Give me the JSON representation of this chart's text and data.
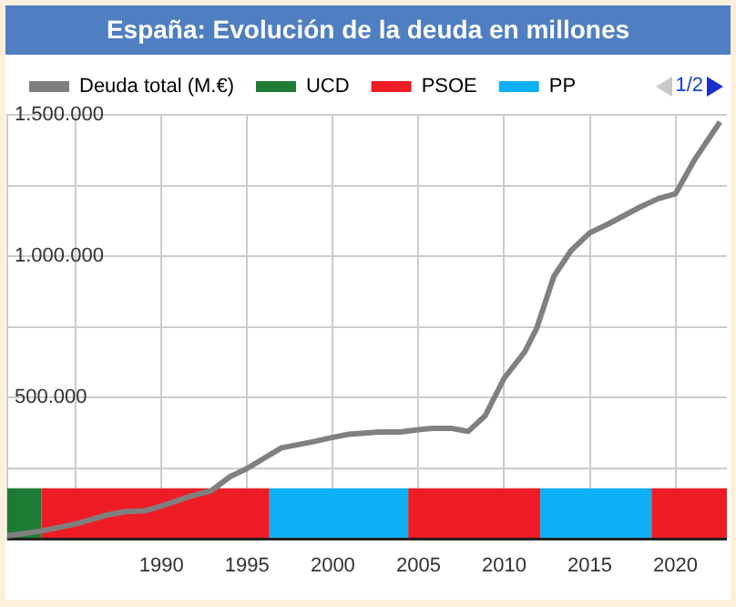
{
  "chart_data": {
    "type": "line",
    "title": "España: Evolución de la deuda en millones",
    "x": [
      1981,
      1983,
      1985,
      1986.8,
      1987.9,
      1989,
      1990,
      1991.7,
      1992.9,
      1994,
      1995,
      1995.9,
      1997,
      1998.8,
      2000,
      2000.9,
      2002.7,
      2003.9,
      2005.1,
      2005.8,
      2006.9,
      2007.9,
      2008.9,
      2010,
      2011.2,
      2011.9,
      2012.9,
      2013.9,
      2015,
      2016.1,
      2017.9,
      2019,
      2020,
      2021.1,
      2022.6
    ],
    "series": [
      {
        "name": "Deuda total (M.€)",
        "color": "#808080",
        "values": [
          12000,
          29000,
          54000,
          85000,
          98000,
          100000,
          117000,
          152000,
          171000,
          221000,
          250000,
          283000,
          323000,
          344000,
          360000,
          371000,
          379000,
          379000,
          388000,
          392000,
          392000,
          381000,
          437000,
          569000,
          662000,
          746000,
          929000,
          1020000,
          1083000,
          1115000,
          1173000,
          1204000,
          1221000,
          1340000,
          1475000
        ]
      }
    ],
    "bands": [
      {
        "axis": "x",
        "from": 1981,
        "to": 1983,
        "label": "UCD",
        "color": "#1e7b34"
      },
      {
        "axis": "x",
        "from": 1983,
        "to": 1996.3,
        "label": "PSOE",
        "color": "#ee1c24"
      },
      {
        "axis": "x",
        "from": 1996.3,
        "to": 2004.4,
        "label": "PP",
        "color": "#0eb0f5"
      },
      {
        "axis": "x",
        "from": 2004.4,
        "to": 2012.1,
        "color": "#ee1c24"
      },
      {
        "axis": "x",
        "from": 2012.1,
        "to": 2018.6,
        "color": "#0eb0f5"
      },
      {
        "axis": "x",
        "from": 2018.6,
        "to": 2023,
        "color": "#ee1c24"
      }
    ],
    "annotations": [
      "1/2"
    ],
    "xlim": [
      1981,
      2023
    ],
    "xticks": [
      {
        "value": 1985,
        "label": null
      },
      1990,
      1995,
      2000,
      2005,
      2010,
      2015,
      2020
    ],
    "ylim": [
      0,
      1500000
    ],
    "yticks": [
      {
        "value": 0,
        "label": null
      },
      {
        "value": 250000,
        "label": null
      },
      {
        "value": 500000,
        "label": "500.000"
      },
      {
        "value": 750000,
        "label": null
      },
      {
        "value": 1000000,
        "label": "1.000.000"
      },
      {
        "value": 1250000,
        "label": null
      },
      {
        "value": 1500000,
        "label": "1.500.000"
      }
    ],
    "grid": true,
    "legend": "top"
  }
}
